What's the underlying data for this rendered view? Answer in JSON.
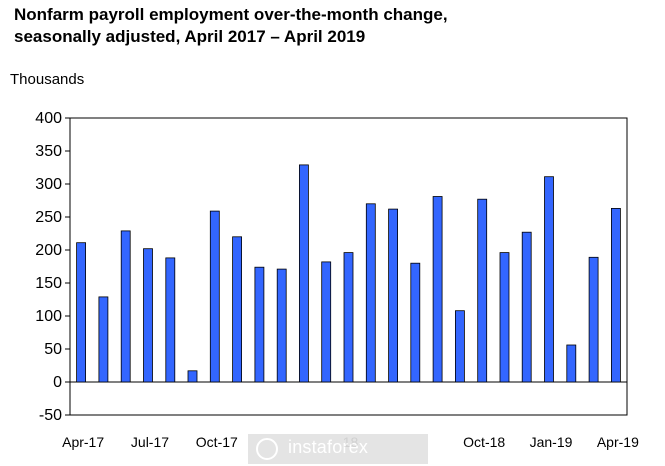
{
  "chart_data": {
    "type": "bar",
    "title_line1": "Nonfarm payroll employment over-the-month change,",
    "title_line2": "seasonally adjusted, April 2017 – April 2019",
    "ylabel": "Thousands",
    "ylim": [
      -50,
      400
    ],
    "yticks": [
      400,
      350,
      300,
      250,
      200,
      150,
      100,
      50,
      0,
      -50
    ],
    "x_tick_labels": [
      "Apr-17",
      "Jul-17",
      "Oct-17",
      "18",
      "Oct-18",
      "Jan-19",
      "Apr-19"
    ],
    "categories": [
      "Apr-17",
      "May-17",
      "Jun-17",
      "Jul-17",
      "Aug-17",
      "Sep-17",
      "Oct-17",
      "Nov-17",
      "Dec-17",
      "Jan-18",
      "Feb-18",
      "Mar-18",
      "Apr-18",
      "May-18",
      "Jun-18",
      "Jul-18",
      "Aug-18",
      "Sep-18",
      "Oct-18",
      "Nov-18",
      "Dec-18",
      "Jan-19",
      "Feb-19",
      "Mar-19",
      "Apr-19"
    ],
    "values": [
      211,
      129,
      229,
      202,
      188,
      17,
      259,
      220,
      174,
      171,
      329,
      182,
      196,
      270,
      262,
      180,
      281,
      108,
      277,
      196,
      227,
      311,
      56,
      189,
      263
    ],
    "bar_color": "#3366ff",
    "grid": false
  },
  "watermark": {
    "text": "instaforex"
  }
}
